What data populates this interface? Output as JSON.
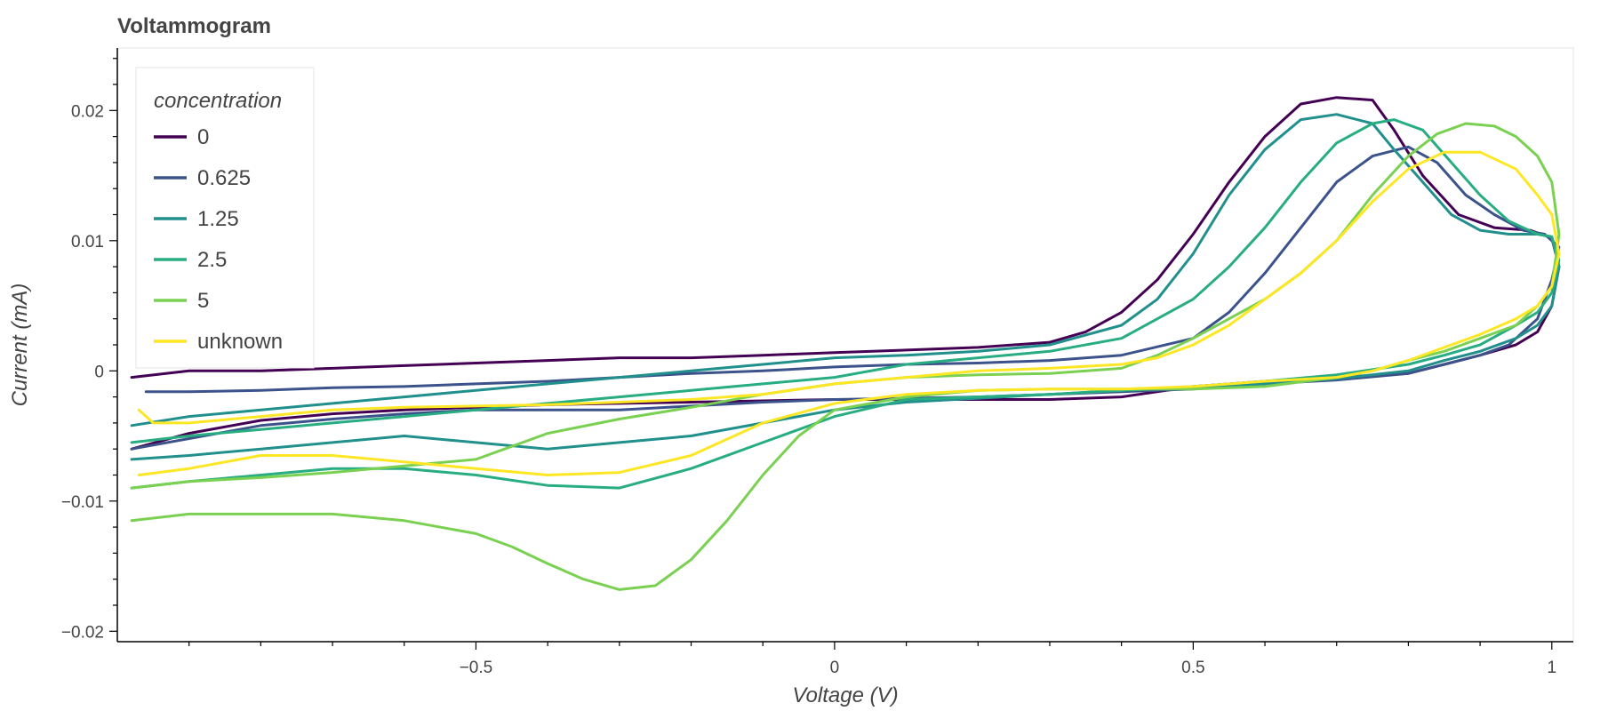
{
  "chart_data": {
    "type": "line",
    "title": "Voltammogram",
    "xlabel": "Voltage (V)",
    "ylabel": "Current (mA)",
    "xlim": [
      -1.0,
      1.03
    ],
    "ylim": [
      -0.0208,
      0.0248
    ],
    "x_ticks": [
      -0.5,
      0,
      0.5,
      1
    ],
    "x_tick_labels": [
      "−0.5",
      "0",
      "0.5",
      "1"
    ],
    "y_ticks": [
      -0.02,
      -0.01,
      0,
      0.01,
      0.02
    ],
    "y_tick_labels": [
      "−0.02",
      "−0.01",
      "0",
      "0.01",
      "0.02"
    ],
    "grid": false,
    "legend": {
      "title": "concentration",
      "placement": "top-left"
    },
    "series": [
      {
        "name": "0",
        "color": "#440154",
        "x": [
          -0.98,
          -0.9,
          -0.8,
          -0.7,
          -0.6,
          -0.5,
          -0.4,
          -0.3,
          -0.2,
          -0.1,
          0,
          0.1,
          0.2,
          0.3,
          0.35,
          0.4,
          0.45,
          0.5,
          0.55,
          0.6,
          0.65,
          0.7,
          0.75,
          0.78,
          0.82,
          0.87,
          0.92,
          0.97,
          1.0,
          1.01,
          1.0,
          0.98,
          0.95,
          0.9,
          0.85,
          0.8,
          0.7,
          0.6,
          0.5,
          0.4,
          0.3,
          0.2,
          0.1,
          0,
          -0.1,
          -0.2,
          -0.3,
          -0.4,
          -0.5,
          -0.6,
          -0.7,
          -0.8,
          -0.9,
          -0.98
        ],
        "y": [
          -0.0005,
          0.0,
          0.0,
          0.0002,
          0.0004,
          0.0006,
          0.0008,
          0.001,
          0.001,
          0.0012,
          0.0014,
          0.0016,
          0.0018,
          0.0022,
          0.003,
          0.0045,
          0.007,
          0.0105,
          0.0145,
          0.018,
          0.0205,
          0.021,
          0.0208,
          0.0185,
          0.015,
          0.012,
          0.011,
          0.0108,
          0.0102,
          0.008,
          0.005,
          0.003,
          0.002,
          0.0012,
          0.0005,
          -0.0002,
          -0.0005,
          -0.0008,
          -0.0012,
          -0.002,
          -0.0022,
          -0.0022,
          -0.0022,
          -0.0022,
          -0.0023,
          -0.0024,
          -0.0025,
          -0.0026,
          -0.0028,
          -0.003,
          -0.0033,
          -0.0038,
          -0.0048,
          -0.006
        ]
      },
      {
        "name": "0.625",
        "color": "#3b528b",
        "x": [
          -0.96,
          -0.9,
          -0.8,
          -0.7,
          -0.6,
          -0.5,
          -0.4,
          -0.3,
          -0.2,
          -0.1,
          0,
          0.1,
          0.2,
          0.3,
          0.4,
          0.5,
          0.55,
          0.6,
          0.65,
          0.7,
          0.75,
          0.8,
          0.84,
          0.88,
          0.92,
          0.96,
          0.99,
          1.01,
          1.0,
          0.98,
          0.94,
          0.9,
          0.85,
          0.8,
          0.7,
          0.6,
          0.5,
          0.4,
          0.3,
          0.2,
          0.1,
          0,
          -0.1,
          -0.2,
          -0.3,
          -0.4,
          -0.5,
          -0.6,
          -0.7,
          -0.8,
          -0.9,
          -0.98
        ],
        "y": [
          -0.0016,
          -0.0016,
          -0.0015,
          -0.0013,
          -0.0012,
          -0.001,
          -0.0008,
          -0.0005,
          -0.0002,
          0.0,
          0.0003,
          0.0005,
          0.0006,
          0.0008,
          0.0012,
          0.0025,
          0.0045,
          0.0075,
          0.011,
          0.0145,
          0.0165,
          0.0172,
          0.016,
          0.0135,
          0.012,
          0.0108,
          0.0105,
          0.0095,
          0.007,
          0.004,
          0.002,
          0.0012,
          0.0005,
          -0.0002,
          -0.0007,
          -0.001,
          -0.0014,
          -0.0016,
          -0.0018,
          -0.002,
          -0.0021,
          -0.0022,
          -0.0024,
          -0.0027,
          -0.003,
          -0.003,
          -0.003,
          -0.0033,
          -0.0037,
          -0.0042,
          -0.0052,
          -0.006
        ]
      },
      {
        "name": "1.25",
        "color": "#21908d",
        "x": [
          -0.98,
          -0.9,
          -0.8,
          -0.7,
          -0.6,
          -0.5,
          -0.4,
          -0.3,
          -0.2,
          -0.1,
          0,
          0.1,
          0.2,
          0.3,
          0.4,
          0.45,
          0.5,
          0.55,
          0.6,
          0.65,
          0.7,
          0.75,
          0.78,
          0.82,
          0.86,
          0.9,
          0.94,
          0.98,
          1.0,
          1.01,
          1.0,
          0.98,
          0.95,
          0.9,
          0.85,
          0.8,
          0.7,
          0.6,
          0.5,
          0.4,
          0.3,
          0.2,
          0.1,
          0,
          -0.1,
          -0.2,
          -0.3,
          -0.4,
          -0.5,
          -0.6,
          -0.7,
          -0.8,
          -0.9,
          -0.98
        ],
        "y": [
          -0.0042,
          -0.0035,
          -0.003,
          -0.0025,
          -0.002,
          -0.0015,
          -0.001,
          -0.0005,
          0.0,
          0.0005,
          0.001,
          0.0012,
          0.0015,
          0.002,
          0.0035,
          0.0055,
          0.009,
          0.0135,
          0.017,
          0.0193,
          0.0197,
          0.019,
          0.017,
          0.0145,
          0.012,
          0.0108,
          0.0105,
          0.0105,
          0.0103,
          0.008,
          0.005,
          0.0035,
          0.0025,
          0.0015,
          0.0008,
          0.0,
          -0.0006,
          -0.001,
          -0.0013,
          -0.0015,
          -0.0018,
          -0.0021,
          -0.0024,
          -0.003,
          -0.004,
          -0.005,
          -0.0055,
          -0.006,
          -0.0055,
          -0.005,
          -0.0055,
          -0.006,
          -0.0065,
          -0.0068
        ]
      },
      {
        "name": "2.5",
        "color": "#27ad81",
        "x": [
          -0.98,
          -0.9,
          -0.8,
          -0.7,
          -0.6,
          -0.5,
          -0.4,
          -0.3,
          -0.2,
          -0.1,
          0,
          0.1,
          0.2,
          0.3,
          0.4,
          0.45,
          0.5,
          0.55,
          0.6,
          0.65,
          0.7,
          0.75,
          0.78,
          0.82,
          0.86,
          0.9,
          0.94,
          0.98,
          1.0,
          1.01,
          1.0,
          0.98,
          0.95,
          0.9,
          0.85,
          0.8,
          0.7,
          0.6,
          0.5,
          0.4,
          0.3,
          0.2,
          0.1,
          0,
          -0.1,
          -0.2,
          -0.3,
          -0.4,
          -0.5,
          -0.6,
          -0.7,
          -0.8,
          -0.9,
          -0.98
        ],
        "y": [
          -0.0055,
          -0.005,
          -0.0045,
          -0.004,
          -0.0035,
          -0.003,
          -0.0025,
          -0.002,
          -0.0015,
          -0.001,
          -0.0005,
          0.0005,
          0.001,
          0.0015,
          0.0025,
          0.004,
          0.0055,
          0.008,
          0.011,
          0.0145,
          0.0175,
          0.019,
          0.0193,
          0.0185,
          0.016,
          0.0135,
          0.0115,
          0.0105,
          0.0103,
          0.0085,
          0.006,
          0.0045,
          0.0035,
          0.002,
          0.0012,
          0.0005,
          -0.0003,
          -0.0008,
          -0.0012,
          -0.0015,
          -0.0018,
          -0.002,
          -0.0022,
          -0.0035,
          -0.0055,
          -0.0075,
          -0.009,
          -0.0088,
          -0.008,
          -0.0075,
          -0.0075,
          -0.008,
          -0.0085,
          -0.009
        ]
      },
      {
        "name": "5",
        "color": "#7ad151",
        "x": [
          -0.98,
          -0.9,
          -0.8,
          -0.7,
          -0.6,
          -0.5,
          -0.45,
          -0.4,
          -0.35,
          -0.3,
          -0.25,
          -0.2,
          -0.15,
          -0.1,
          -0.05,
          0,
          0.1,
          0.2,
          0.3,
          0.4,
          0.5,
          0.6,
          0.7,
          0.75,
          0.8,
          0.85,
          0.9,
          0.95,
          0.98,
          1.0,
          1.01,
          1.0,
          0.98,
          0.95,
          0.92,
          0.88,
          0.84,
          0.8,
          0.75,
          0.7,
          0.65,
          0.6,
          0.55,
          0.5,
          0.45,
          0.4,
          0.3,
          0.2,
          0.1,
          0,
          -0.1,
          -0.2,
          -0.3,
          -0.4,
          -0.5,
          -0.6,
          -0.7,
          -0.8,
          -0.9,
          -0.98
        ],
        "y": [
          -0.0115,
          -0.011,
          -0.011,
          -0.011,
          -0.0115,
          -0.0125,
          -0.0135,
          -0.0148,
          -0.016,
          -0.0168,
          -0.0165,
          -0.0145,
          -0.0115,
          -0.008,
          -0.005,
          -0.003,
          -0.002,
          -0.0015,
          -0.0014,
          -0.0014,
          -0.0014,
          -0.0012,
          -0.0005,
          0.0,
          0.0008,
          0.0015,
          0.0025,
          0.0035,
          0.005,
          0.0065,
          0.0105,
          0.0145,
          0.0165,
          0.018,
          0.0188,
          0.019,
          0.0182,
          0.0165,
          0.0135,
          0.01,
          0.0075,
          0.0055,
          0.004,
          0.0025,
          0.0012,
          0.0002,
          -0.0002,
          -0.0003,
          -0.0005,
          -0.001,
          -0.0018,
          -0.0028,
          -0.0037,
          -0.0048,
          -0.0068,
          -0.0073,
          -0.0078,
          -0.0082,
          -0.0085,
          -0.009
        ]
      },
      {
        "name": "unknown",
        "color": "#fde725",
        "x": [
          -0.97,
          -0.95,
          -0.9,
          -0.8,
          -0.7,
          -0.6,
          -0.5,
          -0.4,
          -0.3,
          -0.2,
          -0.1,
          0,
          0.1,
          0.2,
          0.3,
          0.4,
          0.45,
          0.5,
          0.55,
          0.6,
          0.65,
          0.7,
          0.75,
          0.8,
          0.85,
          0.9,
          0.95,
          0.98,
          1.0,
          1.01,
          1.0,
          0.98,
          0.95,
          0.9,
          0.85,
          0.8,
          0.75,
          0.7,
          0.6,
          0.5,
          0.4,
          0.3,
          0.2,
          0.1,
          0,
          -0.1,
          -0.2,
          -0.3,
          -0.4,
          -0.5,
          -0.6,
          -0.7,
          -0.8,
          -0.9,
          -0.97
        ],
        "y": [
          -0.003,
          -0.004,
          -0.004,
          -0.0035,
          -0.003,
          -0.0028,
          -0.0027,
          -0.0026,
          -0.0024,
          -0.0022,
          -0.0018,
          -0.001,
          -0.0005,
          0.0,
          0.0002,
          0.0005,
          0.001,
          0.002,
          0.0035,
          0.0055,
          0.0075,
          0.01,
          0.013,
          0.0155,
          0.0168,
          0.0168,
          0.0155,
          0.0135,
          0.012,
          0.009,
          0.0065,
          0.005,
          0.004,
          0.0028,
          0.0018,
          0.0008,
          0.0,
          -0.0005,
          -0.0008,
          -0.0012,
          -0.0014,
          -0.0014,
          -0.0015,
          -0.0018,
          -0.0025,
          -0.004,
          -0.0065,
          -0.0078,
          -0.008,
          -0.0075,
          -0.007,
          -0.0065,
          -0.0065,
          -0.0075,
          -0.008
        ]
      }
    ]
  }
}
